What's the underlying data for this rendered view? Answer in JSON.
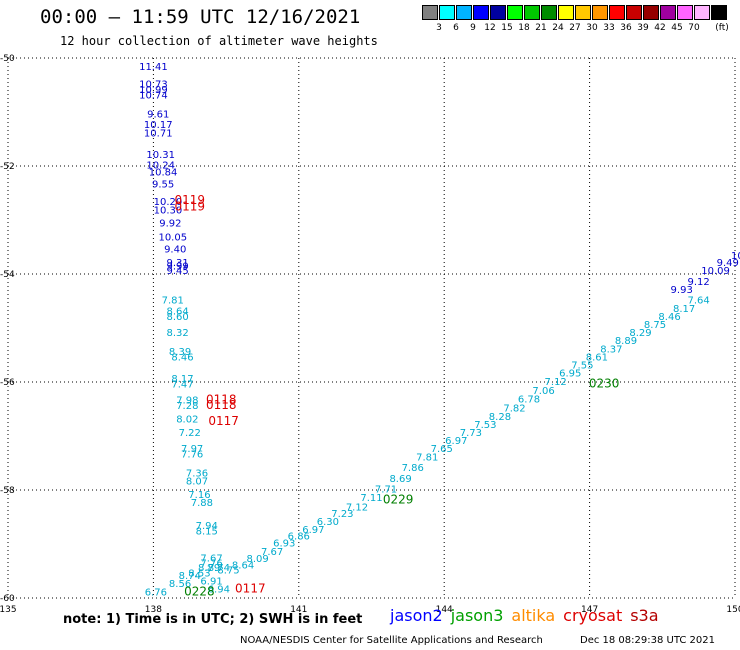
{
  "title": "00:00 – 11:59 UTC 12/16/2021",
  "subtitle": "12 hour collection of altimeter wave heights",
  "colorbar": {
    "unit": "(ft)",
    "swatches": [
      {
        "color": "#808080",
        "label": ""
      },
      {
        "color": "#00ffff",
        "label": "3"
      },
      {
        "color": "#00b4ff",
        "label": "6"
      },
      {
        "color": "#0000ff",
        "label": "9"
      },
      {
        "color": "#0000a0",
        "label": "12"
      },
      {
        "color": "#00ff00",
        "label": "15"
      },
      {
        "color": "#00c800",
        "label": "18"
      },
      {
        "color": "#008c00",
        "label": "21"
      },
      {
        "color": "#ffff00",
        "label": "24"
      },
      {
        "color": "#ffc800",
        "label": "27"
      },
      {
        "color": "#ff9600",
        "label": "30"
      },
      {
        "color": "#ff0000",
        "label": "33"
      },
      {
        "color": "#c80000",
        "label": "36"
      },
      {
        "color": "#960000",
        "label": "39"
      },
      {
        "color": "#a000a0",
        "label": "42"
      },
      {
        "color": "#ff64ff",
        "label": "45"
      },
      {
        "color": "#ffb4ff",
        "label": "70"
      },
      {
        "color": "#000000",
        "label": ""
      }
    ]
  },
  "map": {
    "lon_ticks": [
      "135",
      "138",
      "141",
      "144",
      "147",
      "150"
    ],
    "lat_ticks": [
      "-50",
      "-52",
      "-54",
      "-56",
      "-58",
      "-60"
    ],
    "lon_range": [
      135,
      150
    ],
    "lat_range": [
      -50,
      -60
    ],
    "colors": {
      "jason2": "#0000cc",
      "jason3": "#007f00",
      "altika": "#ff8c00",
      "cryosat": "#dd0000",
      "s3a": "#dd0000",
      "swh_light": "#00aacc"
    },
    "dark_labels": [
      {
        "t": "11.41",
        "lon": 138.0,
        "lat": -50.22
      },
      {
        "t": "10.73",
        "lon": 138.0,
        "lat": -50.55
      },
      {
        "t": "10.99",
        "lon": 138.0,
        "lat": -50.65
      },
      {
        "t": "10.74",
        "lon": 138.0,
        "lat": -50.75
      },
      {
        "t": "9.61",
        "lon": 138.1,
        "lat": -51.1
      },
      {
        "t": "10.17",
        "lon": 138.1,
        "lat": -51.3
      },
      {
        "t": "10.71",
        "lon": 138.1,
        "lat": -51.45
      },
      {
        "t": "10.31",
        "lon": 138.15,
        "lat": -51.85
      },
      {
        "t": "10.24",
        "lon": 138.15,
        "lat": -52.05
      },
      {
        "t": "10.84",
        "lon": 138.2,
        "lat": -52.18
      },
      {
        "t": "9.55",
        "lon": 138.2,
        "lat": -52.4
      },
      {
        "t": "10.20",
        "lon": 138.3,
        "lat": -52.72
      },
      {
        "t": "10.30",
        "lon": 138.3,
        "lat": -52.88
      },
      {
        "t": "9.92",
        "lon": 138.35,
        "lat": -53.12
      },
      {
        "t": "10.05",
        "lon": 138.4,
        "lat": -53.38
      },
      {
        "t": "9.40",
        "lon": 138.45,
        "lat": -53.6
      },
      {
        "t": "9.31",
        "lon": 138.5,
        "lat": -53.85
      },
      {
        "t": "9.99",
        "lon": 138.5,
        "lat": -53.92
      },
      {
        "t": "9.45",
        "lon": 138.5,
        "lat": -54.0
      },
      {
        "t": "10",
        "lon": 150.05,
        "lat": -53.72
      },
      {
        "t": "9.49",
        "lon": 149.85,
        "lat": -53.85
      },
      {
        "t": "10.09",
        "lon": 149.6,
        "lat": -54.0
      },
      {
        "t": "9.12",
        "lon": 149.25,
        "lat": -54.2
      },
      {
        "t": "9.93",
        "lon": 148.9,
        "lat": -54.35
      }
    ],
    "light_labels": [
      {
        "t": "7.81",
        "lon": 138.4,
        "lat": -54.55
      },
      {
        "t": "8.64",
        "lon": 138.5,
        "lat": -54.75
      },
      {
        "t": "8.60",
        "lon": 138.5,
        "lat": -54.85
      },
      {
        "t": "8.32",
        "lon": 138.5,
        "lat": -55.15
      },
      {
        "t": "8.39",
        "lon": 138.55,
        "lat": -55.5
      },
      {
        "t": "8.46",
        "lon": 138.6,
        "lat": -55.6
      },
      {
        "t": "8.17",
        "lon": 138.6,
        "lat": -56.0
      },
      {
        "t": "7.47",
        "lon": 138.6,
        "lat": -56.1
      },
      {
        "t": "7.98",
        "lon": 138.7,
        "lat": -56.4
      },
      {
        "t": "7.28",
        "lon": 138.7,
        "lat": -56.5
      },
      {
        "t": "8.02",
        "lon": 138.7,
        "lat": -56.75
      },
      {
        "t": "7.22",
        "lon": 138.75,
        "lat": -57.0
      },
      {
        "t": "7.97",
        "lon": 138.8,
        "lat": -57.3
      },
      {
        "t": "7.76",
        "lon": 138.8,
        "lat": -57.4
      },
      {
        "t": "7.36",
        "lon": 138.9,
        "lat": -57.75
      },
      {
        "t": "8.07",
        "lon": 138.9,
        "lat": -57.9
      },
      {
        "t": "7.16",
        "lon": 138.95,
        "lat": -58.15
      },
      {
        "t": "7.88",
        "lon": 139.0,
        "lat": -58.3
      },
      {
        "t": "7.94",
        "lon": 139.1,
        "lat": -58.72
      },
      {
        "t": "8.15",
        "lon": 139.1,
        "lat": -58.82
      },
      {
        "t": "7.67",
        "lon": 139.2,
        "lat": -59.32
      },
      {
        "t": "7.76",
        "lon": 139.2,
        "lat": -59.42
      },
      {
        "t": "8.75",
        "lon": 139.55,
        "lat": -59.55
      },
      {
        "t": "8.64",
        "lon": 139.85,
        "lat": -59.45
      },
      {
        "t": "8.09",
        "lon": 140.15,
        "lat": -59.33
      },
      {
        "t": "7.67",
        "lon": 140.45,
        "lat": -59.2
      },
      {
        "t": "6.93",
        "lon": 140.7,
        "lat": -59.05
      },
      {
        "t": "6.86",
        "lon": 141.0,
        "lat": -58.92
      },
      {
        "t": "6.97",
        "lon": 141.3,
        "lat": -58.8
      },
      {
        "t": "6.30",
        "lon": 141.6,
        "lat": -58.65
      },
      {
        "t": "7.23",
        "lon": 141.9,
        "lat": -58.5
      },
      {
        "t": "7.12",
        "lon": 142.2,
        "lat": -58.38
      },
      {
        "t": "7.11",
        "lon": 142.5,
        "lat": -58.2
      },
      {
        "t": "7.71",
        "lon": 142.8,
        "lat": -58.05
      },
      {
        "t": "8.69",
        "lon": 143.1,
        "lat": -57.85
      },
      {
        "t": "7.86",
        "lon": 143.35,
        "lat": -57.65
      },
      {
        "t": "7.81",
        "lon": 143.65,
        "lat": -57.45
      },
      {
        "t": "7.65",
        "lon": 143.95,
        "lat": -57.3
      },
      {
        "t": "6.97",
        "lon": 144.25,
        "lat": -57.15
      },
      {
        "t": "7.73",
        "lon": 144.55,
        "lat": -57.0
      },
      {
        "t": "7.53",
        "lon": 144.85,
        "lat": -56.85
      },
      {
        "t": "8.28",
        "lon": 145.15,
        "lat": -56.7
      },
      {
        "t": "7.82",
        "lon": 145.45,
        "lat": -56.55
      },
      {
        "t": "6.78",
        "lon": 145.75,
        "lat": -56.38
      },
      {
        "t": "7.06",
        "lon": 146.05,
        "lat": -56.22
      },
      {
        "t": "7.12",
        "lon": 146.3,
        "lat": -56.06
      },
      {
        "t": "6.95",
        "lon": 146.6,
        "lat": -55.9
      },
      {
        "t": "7.55",
        "lon": 146.85,
        "lat": -55.75
      },
      {
        "t": "8.61",
        "lon": 147.15,
        "lat": -55.6
      },
      {
        "t": "8.37",
        "lon": 147.45,
        "lat": -55.45
      },
      {
        "t": "8.89",
        "lon": 147.75,
        "lat": -55.3
      },
      {
        "t": "8.29",
        "lon": 148.05,
        "lat": -55.15
      },
      {
        "t": "8.75",
        "lon": 148.35,
        "lat": -55.0
      },
      {
        "t": "8.46",
        "lon": 148.65,
        "lat": -54.85
      },
      {
        "t": "8.17",
        "lon": 148.95,
        "lat": -54.7
      },
      {
        "t": "7.64",
        "lon": 149.25,
        "lat": -54.55
      },
      {
        "t": "8.74",
        "lon": 138.75,
        "lat": -59.65
      },
      {
        "t": "8.79",
        "lon": 139.15,
        "lat": -59.5
      },
      {
        "t": "8.74",
        "lon": 139.35,
        "lat": -59.5
      },
      {
        "t": "8.56",
        "lon": 138.55,
        "lat": -59.8
      },
      {
        "t": "6.91",
        "lon": 139.2,
        "lat": -59.75
      },
      {
        "t": "8.53",
        "lon": 138.95,
        "lat": -59.6
      },
      {
        "t": "6.76",
        "lon": 138.05,
        "lat": -59.95
      },
      {
        "t": "6.94",
        "lon": 139.35,
        "lat": -59.9
      }
    ],
    "time_labels": [
      {
        "t": "0119",
        "lon": 138.75,
        "lat": -52.7,
        "c": "cryosat"
      },
      {
        "t": "0119",
        "lon": 138.75,
        "lat": -52.82,
        "c": "cryosat"
      },
      {
        "t": "0118",
        "lon": 139.4,
        "lat": -56.4,
        "c": "cryosat"
      },
      {
        "t": "0118",
        "lon": 139.4,
        "lat": -56.5,
        "c": "cryosat"
      },
      {
        "t": "0117",
        "lon": 139.45,
        "lat": -56.8,
        "c": "cryosat"
      },
      {
        "t": "0117",
        "lon": 140.0,
        "lat": -59.9,
        "c": "cryosat"
      },
      {
        "t": "0228",
        "lon": 138.95,
        "lat": -59.95,
        "c": "jason3"
      },
      {
        "t": "0229",
        "lon": 143.05,
        "lat": -58.25,
        "c": "jason3"
      },
      {
        "t": "0230",
        "lon": 147.3,
        "lat": -56.1,
        "c": "jason3"
      }
    ]
  },
  "note": "note: 1) Time is in UTC; 2) SWH is in feet",
  "legend": [
    {
      "name": "jason2",
      "color": "#0000ff"
    },
    {
      "name": "jason3",
      "color": "#00a000"
    },
    {
      "name": "altika",
      "color": "#ff8c00"
    },
    {
      "name": "cryosat",
      "color": "#dd0000"
    },
    {
      "name": "s3a",
      "color": "#b40000"
    }
  ],
  "footer": "NOAA/NESDIS Center for Satellite Applications and Research",
  "footer_time": "Dec 18 08:29:38 UTC 2021"
}
